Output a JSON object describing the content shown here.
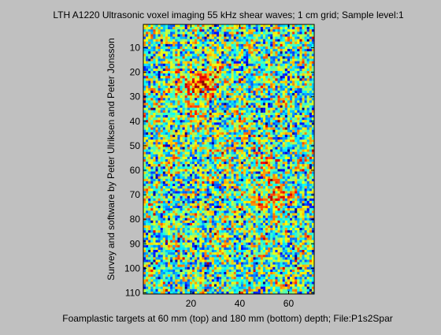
{
  "figure": {
    "background": "#c0c0c0"
  },
  "chart_data": {
    "type": "heatmap",
    "title": "LTH A1220 Ultrasonic voxel imaging 55 kHz shear waves; 1 cm grid; Sample level:1",
    "xlabel": "Foamplastic targets at 60 mm (top) and 180 mm (bottom) depth; File:P1s2Spar",
    "ylabel": "Survey and software by Peter Ulriksen and Peter Jonsson",
    "columns": 70,
    "rows": 110,
    "xlim": [
      0.5,
      70.5
    ],
    "ylim": [
      0.5,
      110.5
    ],
    "y_direction": "reversed",
    "x_ticks": [
      20,
      40,
      60
    ],
    "y_ticks": [
      10,
      20,
      30,
      40,
      50,
      60,
      70,
      80,
      90,
      100,
      110
    ],
    "x_tick_labels": [
      "20",
      "40",
      "60"
    ],
    "y_tick_labels": [
      "10",
      "20",
      "30",
      "40",
      "50",
      "60",
      "70",
      "80",
      "90",
      "100",
      "110"
    ],
    "colormap": "jet",
    "colormap_stops": [
      "#00008f",
      "#0000ff",
      "#00ffff",
      "#ffff00",
      "#ff0000",
      "#800000"
    ],
    "dominant_colors": [
      "#3cb9d8",
      "#9cd76c",
      "#fff000"
    ],
    "hotspots": [
      {
        "x": 24,
        "y": 24,
        "level": "high"
      },
      {
        "x": 52,
        "y": 71,
        "level": "high"
      }
    ],
    "grid": false,
    "legend": "none"
  }
}
